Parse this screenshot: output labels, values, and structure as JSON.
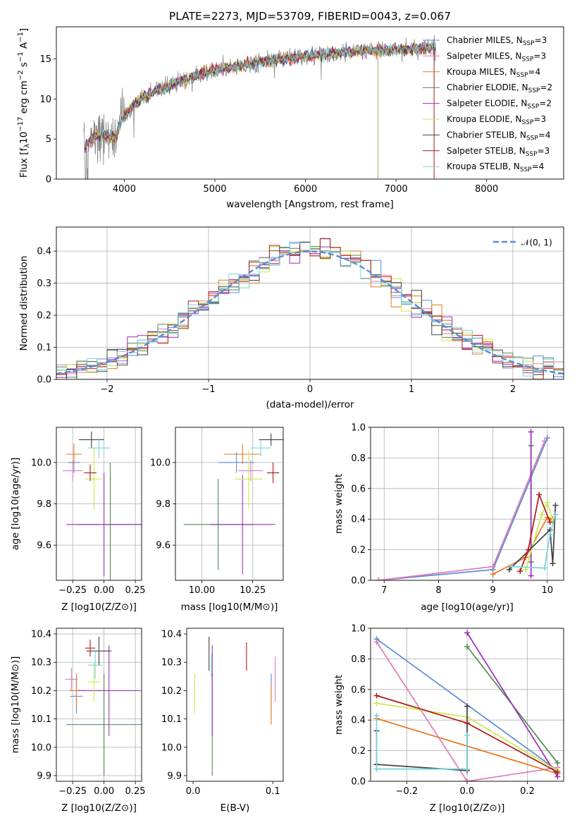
{
  "figure_title": "PLATE=2273, MJD=53709, FIBERID=0043, z=0.067",
  "colors": {
    "Chabrier MILES": "#5b8bd6",
    "Salpeter MILES": "#e07bb8",
    "Kroupa MILES": "#e8771f",
    "Chabrier ELODIE": "#4f8a4f",
    "Salpeter ELODIE": "#9b2fb8",
    "Kroupa ELODIE": "#cde84a",
    "Chabrier STELIB": "#404040",
    "Salpeter STELIB": "#b01a1a",
    "Kroupa STELIB": "#79d3de"
  },
  "chart_data": [
    {
      "id": "spectrum",
      "type": "line",
      "title": "PLATE=2273, MJD=53709, FIBERID=0043, z=0.067",
      "xlabel": "wavelength [Angstrom, rest frame]",
      "ylabel": "Flux [f_λ 10^-17 erg cm^-2 s^-1 A^-1]",
      "xlim": [
        3250,
        8850
      ],
      "ylim": [
        0,
        19
      ],
      "xticks": [
        "4000",
        "5000",
        "6000",
        "7000",
        "8000"
      ],
      "yticks": [
        "0",
        "5",
        "10",
        "15"
      ],
      "grid": false,
      "legend_position": "top-right",
      "legend": [
        {
          "label": "Chabrier MILES, N",
          "sub": "SSP",
          "suffix": "=3"
        },
        {
          "label": "Salpeter MILES, N",
          "sub": "SSP",
          "suffix": "=3"
        },
        {
          "label": "Kroupa MILES, N",
          "sub": "SSP",
          "suffix": "=4"
        },
        {
          "label": "Chabrier ELODIE, N",
          "sub": "SSP",
          "suffix": "=2"
        },
        {
          "label": "Salpeter ELODIE, N",
          "sub": "SSP",
          "suffix": "=2"
        },
        {
          "label": "Kroupa ELODIE, N",
          "sub": "SSP",
          "suffix": "=3"
        },
        {
          "label": "Chabrier STELIB, N",
          "sub": "SSP",
          "suffix": "=4"
        },
        {
          "label": "Salpeter STELIB, N",
          "sub": "SSP",
          "suffix": "=3"
        },
        {
          "label": "Kroupa STELIB, N",
          "sub": "SSP",
          "suffix": "=4"
        }
      ],
      "continuum_knots": [
        [
          3550,
          4.0
        ],
        [
          3700,
          5.5
        ],
        [
          3900,
          5.2
        ],
        [
          3980,
          7.8
        ],
        [
          4200,
          10.2
        ],
        [
          4600,
          12.2
        ],
        [
          5000,
          13.6
        ],
        [
          5500,
          14.6
        ],
        [
          6000,
          15.3
        ],
        [
          6600,
          16.0
        ],
        [
          7200,
          16.2
        ],
        [
          7450,
          16.5
        ]
      ],
      "data_drop_at": [
        6800,
        7420
      ]
    },
    {
      "id": "residuals",
      "type": "step",
      "xlabel": "(data-model)/error",
      "ylabel": "Normed distribution",
      "xlim": [
        -2.5,
        2.5
      ],
      "ylim": [
        0,
        0.475
      ],
      "xticks": [
        "−2",
        "−1",
        "0",
        "1",
        "2"
      ],
      "yticks": [
        "0.0",
        "0.1",
        "0.2",
        "0.3",
        "0.4"
      ],
      "grid": true,
      "legend": "𝒩(0, 1)",
      "legend_position": "top-right",
      "bin_width": 0.1
    },
    {
      "id": "z_vs_age",
      "type": "errorbar",
      "xlabel": "Z [log10(Z/Z⊙)]",
      "ylabel": "age  [log10(age/yr)]",
      "xlim": [
        -0.38,
        0.3
      ],
      "ylim": [
        9.43,
        10.17
      ],
      "xticks": [
        "−0.25",
        "0.00",
        "0.25"
      ],
      "yticks": [
        "9.6",
        "9.8",
        "10.0"
      ],
      "grid": true,
      "points": [
        {
          "model": "Chabrier MILES",
          "x": -0.24,
          "xerr": 0.05,
          "y": 10.0,
          "yerr": 0.05
        },
        {
          "model": "Salpeter MILES",
          "x": -0.25,
          "xerr": 0.08,
          "y": 9.96,
          "yerr": 0.05
        },
        {
          "model": "Kroupa MILES",
          "x": -0.24,
          "xerr": 0.06,
          "y": 10.04,
          "yerr": 0.05
        },
        {
          "model": "Chabrier ELODIE",
          "x": 0.05,
          "xerr": 0.25,
          "y": 9.7,
          "yerr": 0.3
        },
        {
          "model": "Salpeter ELODIE",
          "x": 0.0,
          "xerr": 0.3,
          "y": 9.7,
          "yerr": 0.25
        },
        {
          "model": "Kroupa ELODIE",
          "x": -0.08,
          "xerr": 0.07,
          "y": 9.92,
          "yerr": 0.15
        },
        {
          "model": "Chabrier STELIB",
          "x": -0.1,
          "xerr": 0.1,
          "y": 10.11,
          "yerr": 0.04
        },
        {
          "model": "Salpeter STELIB",
          "x": -0.11,
          "xerr": 0.05,
          "y": 9.95,
          "yerr": 0.04
        },
        {
          "model": "Kroupa STELIB",
          "x": -0.04,
          "xerr": 0.09,
          "y": 10.07,
          "yerr": 0.05
        }
      ]
    },
    {
      "id": "mass_vs_age",
      "type": "errorbar",
      "xlabel": "mass [log10(M/M⊙)]",
      "ylabel": "",
      "xlim": [
        9.87,
        10.4
      ],
      "ylim": [
        9.43,
        10.17
      ],
      "xticks": [
        "10.00",
        "10.25"
      ],
      "yticks": [
        "9.6",
        "9.8",
        "10.0"
      ],
      "grid": true,
      "points": [
        {
          "model": "Chabrier MILES",
          "x": 10.17,
          "xerr": 0.09,
          "y": 10.0,
          "yerr": 0.05
        },
        {
          "model": "Salpeter MILES",
          "x": 10.24,
          "xerr": 0.06,
          "y": 9.96,
          "yerr": 0.05
        },
        {
          "model": "Kroupa MILES",
          "x": 10.2,
          "xerr": 0.09,
          "y": 10.04,
          "yerr": 0.05
        },
        {
          "model": "Chabrier ELODIE",
          "x": 10.08,
          "xerr": 0.17,
          "y": 9.7,
          "yerr": 0.22
        },
        {
          "model": "Salpeter ELODIE",
          "x": 10.2,
          "xerr": 0.16,
          "y": 9.7,
          "yerr": 0.24
        },
        {
          "model": "Kroupa ELODIE",
          "x": 10.23,
          "xerr": 0.07,
          "y": 9.92,
          "yerr": 0.14
        },
        {
          "model": "Chabrier STELIB",
          "x": 10.34,
          "xerr": 0.06,
          "y": 10.11,
          "yerr": 0.03
        },
        {
          "model": "Salpeter STELIB",
          "x": 10.35,
          "xerr": 0.03,
          "y": 9.95,
          "yerr": 0.05
        },
        {
          "model": "Kroupa STELIB",
          "x": 10.29,
          "xerr": 0.05,
          "y": 10.07,
          "yerr": 0.04
        }
      ]
    },
    {
      "id": "age_vs_weight",
      "type": "line",
      "xlabel": "age  [log10(age/yr)]",
      "ylabel": "mass weight",
      "xlim": [
        6.75,
        10.3
      ],
      "ylim": [
        0,
        1.0
      ],
      "xticks": [
        "7",
        "8",
        "9",
        "10"
      ],
      "yticks": [
        "0.0",
        "0.2",
        "0.4",
        "0.6",
        "0.8",
        "1.0"
      ],
      "grid": true,
      "series": [
        {
          "model": "Chabrier MILES",
          "x": [
            6.9,
            9.0,
            10.0
          ],
          "y": [
            0.0,
            0.07,
            0.93
          ]
        },
        {
          "model": "Salpeter MILES",
          "x": [
            6.9,
            9.0,
            9.95
          ],
          "y": [
            0.0,
            0.09,
            0.91
          ]
        },
        {
          "model": "Kroupa MILES",
          "x": [
            9.0,
            9.6,
            10.0,
            10.1
          ],
          "y": [
            0.04,
            0.15,
            0.41,
            0.4
          ]
        },
        {
          "model": "Chabrier ELODIE",
          "x": [
            9.7,
            9.7
          ],
          "y": [
            0.12,
            0.88
          ]
        },
        {
          "model": "Salpeter ELODIE",
          "x": [
            9.7,
            9.7
          ],
          "y": [
            0.03,
            0.97
          ]
        },
        {
          "model": "Kroupa ELODIE",
          "x": [
            9.6,
            9.9,
            10.0,
            10.1
          ],
          "y": [
            0.07,
            0.43,
            0.51,
            0.39
          ]
        },
        {
          "model": "Chabrier STELIB",
          "x": [
            9.3,
            10.05,
            10.1,
            10.15
          ],
          "y": [
            0.07,
            0.33,
            0.11,
            0.49
          ]
        },
        {
          "model": "Salpeter STELIB",
          "x": [
            9.5,
            9.65,
            9.85,
            10.05
          ],
          "y": [
            0.06,
            0.2,
            0.56,
            0.38
          ]
        },
        {
          "model": "Kroupa STELIB",
          "x": [
            9.35,
            9.95,
            10.05,
            10.15
          ],
          "y": [
            0.09,
            0.08,
            0.3,
            0.43
          ]
        }
      ]
    },
    {
      "id": "z_vs_mass",
      "type": "errorbar",
      "xlabel": "Z [log10(Z/Z⊙)]",
      "ylabel": "mass [log10(M/M⊙)]",
      "xlim": [
        -0.38,
        0.3
      ],
      "ylim": [
        9.88,
        10.42
      ],
      "xticks": [
        "−0.25",
        "0.00",
        "0.25"
      ],
      "yticks": [
        "9.9",
        "10.0",
        "10.1",
        "10.2",
        "10.3",
        "10.4"
      ],
      "grid": true,
      "points": [
        {
          "model": "Chabrier MILES",
          "x": -0.22,
          "xerr": 0.05,
          "y": 10.18,
          "yerr": 0.06
        },
        {
          "model": "Salpeter MILES",
          "x": -0.26,
          "xerr": 0.05,
          "y": 10.24,
          "yerr": 0.04
        },
        {
          "model": "Kroupa MILES",
          "x": -0.22,
          "xerr": 0.06,
          "y": 10.2,
          "yerr": 0.06
        },
        {
          "model": "Chabrier ELODIE",
          "x": 0.0,
          "xerr": 0.3,
          "y": 10.08,
          "yerr": 0.18
        },
        {
          "model": "Salpeter ELODIE",
          "x": 0.04,
          "xerr": 0.25,
          "y": 10.2,
          "yerr": 0.16
        },
        {
          "model": "Kroupa ELODIE",
          "x": -0.08,
          "xerr": 0.05,
          "y": 10.23,
          "yerr": 0.07
        },
        {
          "model": "Chabrier STELIB",
          "x": -0.04,
          "xerr": 0.1,
          "y": 10.34,
          "yerr": 0.05
        },
        {
          "model": "Salpeter STELIB",
          "x": -0.11,
          "xerr": 0.04,
          "y": 10.35,
          "yerr": 0.03
        },
        {
          "model": "Kroupa STELIB",
          "x": -0.07,
          "xerr": 0.06,
          "y": 10.29,
          "yerr": 0.05
        }
      ]
    },
    {
      "id": "ebv_vs_mass",
      "type": "errorbar",
      "xlabel": "E(B-V)",
      "ylabel": "",
      "xlim": [
        -0.008,
        0.113
      ],
      "ylim": [
        9.88,
        10.42
      ],
      "xticks": [
        "0.0",
        "0.1"
      ],
      "yticks": [
        "9.9",
        "10.0",
        "10.1",
        "10.2",
        "10.3",
        "10.4"
      ],
      "grid": false,
      "points": [
        {
          "model": "Chabrier MILES",
          "x": 0.098,
          "xerr": 0,
          "y": 10.18,
          "yerr": 0.08
        },
        {
          "model": "Salpeter MILES",
          "x": 0.103,
          "xerr": 0,
          "y": 10.24,
          "yerr": 0.08
        },
        {
          "model": "Kroupa MILES",
          "x": 0.098,
          "xerr": 0,
          "y": 10.15,
          "yerr": 0.07
        },
        {
          "model": "Chabrier ELODIE",
          "x": 0.024,
          "xerr": 0,
          "y": 10.08,
          "yerr": 0.18
        },
        {
          "model": "Salpeter ELODIE",
          "x": 0.024,
          "xerr": 0,
          "y": 10.2,
          "yerr": 0.16
        },
        {
          "model": "Kroupa ELODIE",
          "x": 0.002,
          "xerr": 0,
          "y": 10.19,
          "yerr": 0.07
        },
        {
          "model": "Chabrier STELIB",
          "x": 0.02,
          "xerr": 0,
          "y": 10.33,
          "yerr": 0.06
        },
        {
          "model": "Salpeter STELIB",
          "x": 0.067,
          "xerr": 0,
          "y": 10.32,
          "yerr": 0.05
        },
        {
          "model": "Kroupa STELIB",
          "x": 0.023,
          "xerr": 0,
          "y": 10.29,
          "yerr": 0.04
        }
      ]
    },
    {
      "id": "z_vs_weight",
      "type": "line",
      "xlabel": "Z [log10(Z/Z⊙)]",
      "ylabel": "mass weight",
      "xlim": [
        -0.32,
        0.32
      ],
      "ylim": [
        0,
        1.0
      ],
      "xticks": [
        "−0.2",
        "0.0",
        "0.2"
      ],
      "yticks": [
        "0.0",
        "0.2",
        "0.4",
        "0.6",
        "0.8",
        "1.0"
      ],
      "grid": true,
      "series": [
        {
          "model": "Chabrier MILES",
          "x": [
            -0.3,
            0.3
          ],
          "y": [
            0.93,
            0.07
          ]
        },
        {
          "model": "Salpeter MILES",
          "x": [
            -0.3,
            0.0,
            0.3
          ],
          "y": [
            0.91,
            0.0,
            0.09
          ]
        },
        {
          "model": "Kroupa MILES",
          "x": [
            -0.3,
            0.3
          ],
          "y": [
            0.41,
            0.05
          ]
        },
        {
          "model": "Chabrier ELODIE",
          "x": [
            0.0,
            0.3
          ],
          "y": [
            0.88,
            0.12
          ]
        },
        {
          "model": "Salpeter ELODIE",
          "x": [
            0.0,
            0.3
          ],
          "y": [
            0.97,
            0.03
          ]
        },
        {
          "model": "Kroupa ELODIE",
          "x": [
            -0.3,
            0.0,
            0.3
          ],
          "y": [
            0.51,
            0.42,
            0.07
          ]
        },
        {
          "model": "Chabrier STELIB",
          "x": [
            -0.3,
            -0.3,
            -0.3,
            0.0,
            0.0
          ],
          "y": [
            0.33,
            0.11,
            0.11,
            0.07,
            0.49
          ]
        },
        {
          "model": "Salpeter STELIB",
          "x": [
            -0.3,
            0.0,
            0.3
          ],
          "y": [
            0.56,
            0.38,
            0.06
          ]
        },
        {
          "model": "Kroupa STELIB",
          "x": [
            -0.3,
            -0.3,
            0.0,
            0.0
          ],
          "y": [
            0.43,
            0.08,
            0.08,
            0.3
          ]
        }
      ]
    }
  ]
}
